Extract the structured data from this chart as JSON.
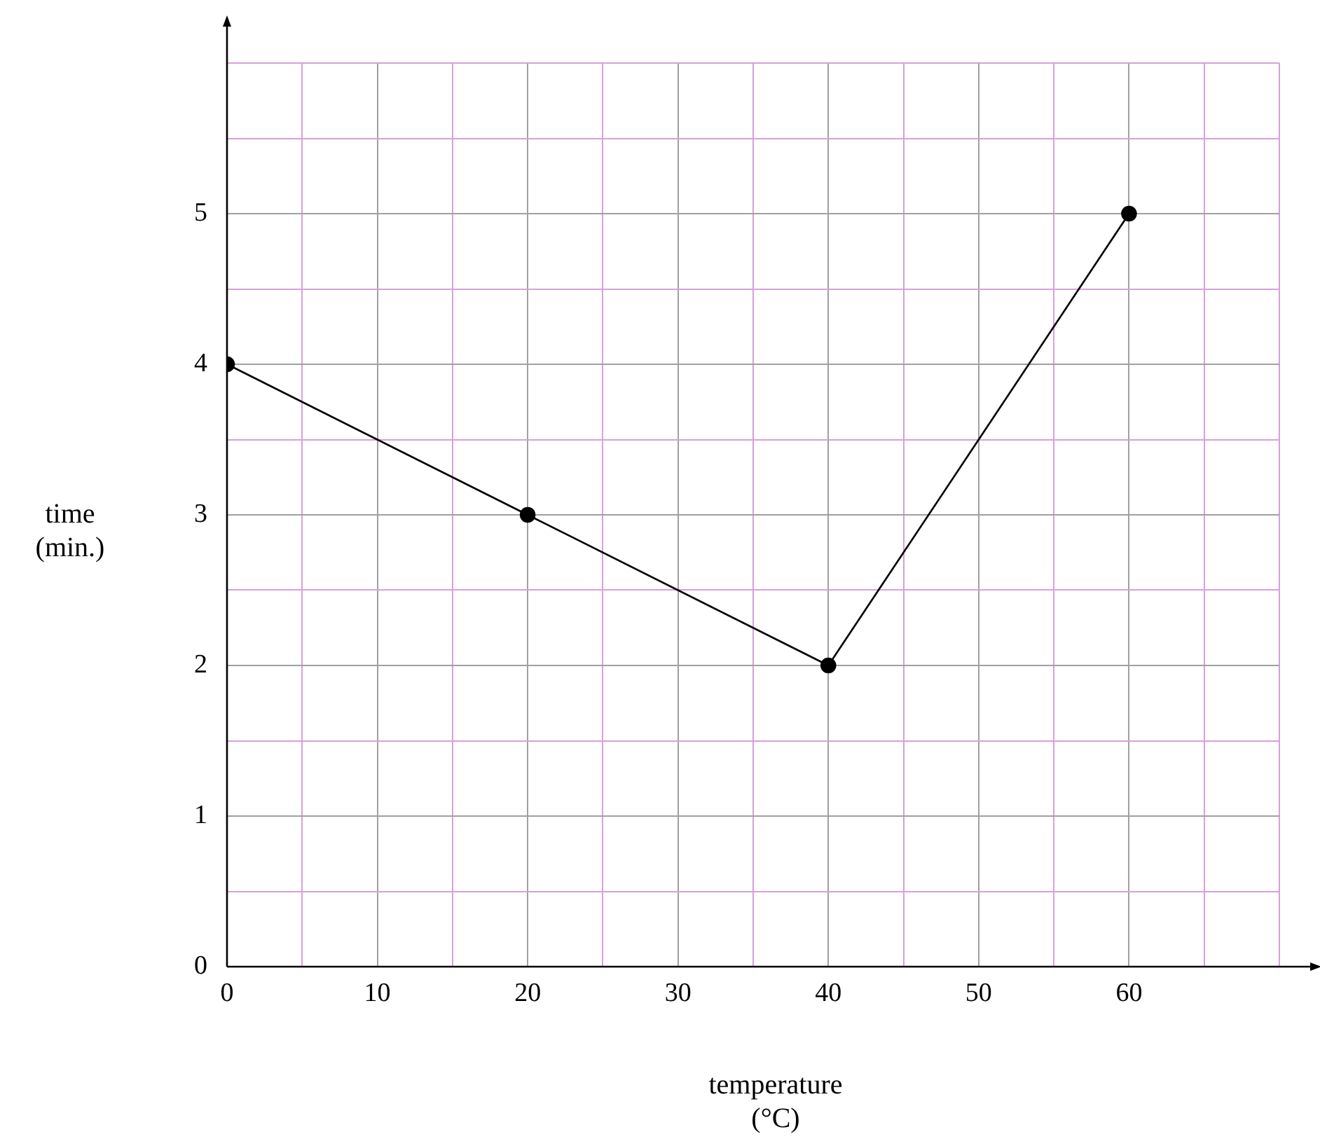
{
  "chart_data": {
    "type": "line",
    "xlabel": "temperature\n(°C)",
    "ylabel": "time\n(min.)",
    "x": [
      0,
      20,
      40,
      60
    ],
    "series": [
      {
        "color": "#000000",
        "values": [
          4,
          3,
          2,
          5
        ]
      }
    ],
    "xlim": [
      0,
      70
    ],
    "xticks": [
      0,
      {
        "value": 5,
        "label": null
      },
      10,
      {
        "value": 15,
        "label": null
      },
      20,
      {
        "value": 25,
        "label": null
      },
      30,
      {
        "value": 35,
        "label": null
      },
      40,
      {
        "value": 45,
        "label": null
      },
      50,
      {
        "value": 55,
        "label": null
      },
      60,
      {
        "value": 65,
        "label": null
      },
      {
        "value": 70,
        "label": null
      }
    ],
    "ylim": [
      0,
      6
    ],
    "yticks": [
      0,
      {
        "value": 0.5,
        "label": null
      },
      1,
      {
        "value": 1.5,
        "label": null
      },
      2,
      {
        "value": 2.5,
        "label": null
      },
      3,
      {
        "value": 3.5,
        "label": null
      },
      4,
      {
        "value": 4.5,
        "label": null
      },
      5,
      {
        "value": 5.5,
        "label": null
      },
      {
        "value": 6,
        "label": null
      }
    ],
    "grid": true,
    "legend": false,
    "marker": "circle",
    "line_style": "solid"
  }
}
